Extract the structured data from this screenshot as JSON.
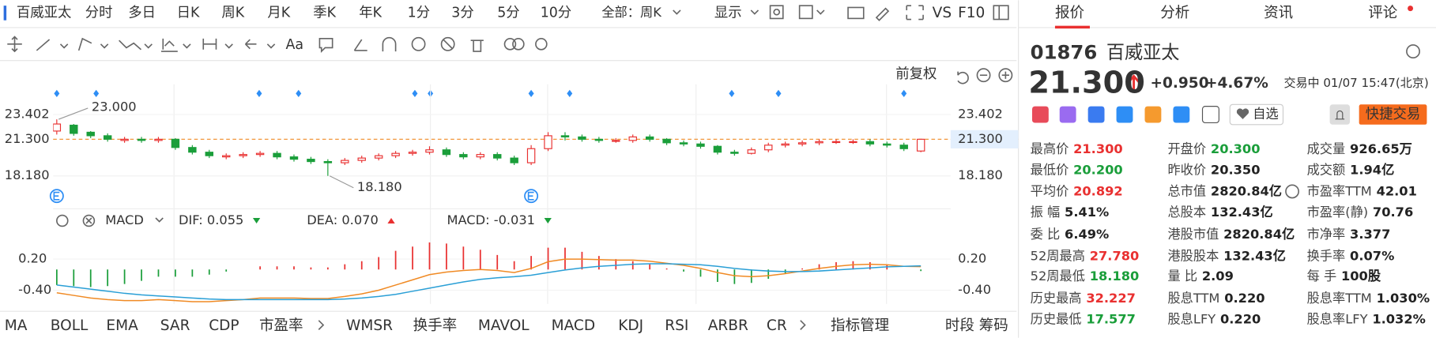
{
  "toolbar": {
    "tabs": [
      "百威亚太",
      "分时",
      "多日",
      "日K",
      "周K",
      "月K",
      "季K",
      "年K",
      "1分",
      "3分",
      "5分",
      "10分",
      "全部：周K",
      "显示"
    ],
    "active_tab": 3,
    "vs": "VS",
    "f10": "F10"
  },
  "drawing_tools": {
    "text_tool": "Aa"
  },
  "chart_header": {
    "adjust": "前复权"
  },
  "chart_data": [
    {
      "type": "candlestick",
      "open": [
        22.0,
        22.5,
        21.9,
        21.6,
        21.2,
        21.3,
        21.2,
        21.3,
        20.6,
        20.2,
        19.8,
        19.9,
        20.0,
        20.1,
        19.8,
        19.6,
        19.4,
        19.3,
        19.5,
        19.7,
        19.9,
        20.1,
        20.2,
        20.4,
        20.0,
        19.8,
        20.0,
        19.7,
        19.3,
        20.5,
        21.6,
        21.5,
        21.3,
        21.2,
        21.2,
        21.5,
        21.3,
        21.0,
        20.9,
        20.7,
        20.2,
        20.1,
        20.4,
        20.8,
        20.9,
        21.0,
        21.1,
        21.1,
        21.1,
        20.9,
        20.8,
        20.3
      ],
      "high": [
        23.0,
        22.6,
        22.0,
        21.8,
        21.5,
        21.5,
        21.5,
        21.4,
        20.8,
        20.4,
        20.1,
        20.2,
        20.3,
        20.3,
        20.0,
        19.8,
        19.6,
        19.7,
        19.9,
        20.1,
        20.3,
        20.4,
        20.7,
        20.6,
        20.2,
        20.2,
        20.2,
        19.9,
        20.8,
        21.9,
        21.9,
        21.7,
        21.5,
        21.4,
        21.7,
        21.7,
        21.4,
        21.2,
        21.1,
        20.8,
        20.4,
        20.6,
        21.0,
        21.1,
        21.2,
        21.3,
        21.3,
        21.3,
        21.3,
        21.1,
        21.0,
        21.3
      ],
      "low": [
        21.7,
        21.6,
        21.4,
        21.1,
        21.0,
        21.0,
        21.0,
        20.4,
        20.0,
        19.7,
        19.6,
        19.7,
        19.8,
        19.6,
        19.4,
        19.2,
        18.18,
        19.1,
        19.3,
        19.5,
        19.7,
        19.9,
        20.0,
        19.8,
        19.6,
        19.6,
        19.5,
        19.1,
        19.1,
        20.3,
        21.2,
        21.1,
        21.0,
        21.0,
        21.0,
        21.1,
        20.8,
        20.7,
        20.5,
        20.0,
        19.9,
        20.0,
        20.2,
        20.6,
        20.7,
        20.8,
        20.9,
        20.9,
        20.7,
        20.6,
        20.3,
        20.2
      ],
      "close": [
        22.6,
        21.8,
        21.6,
        21.3,
        21.3,
        21.2,
        21.3,
        20.6,
        20.2,
        19.9,
        19.9,
        20.0,
        20.1,
        19.8,
        19.6,
        19.4,
        19.3,
        19.5,
        19.7,
        19.9,
        20.1,
        20.2,
        20.4,
        20.0,
        19.8,
        20.0,
        19.7,
        19.3,
        20.5,
        21.6,
        21.5,
        21.3,
        21.2,
        21.2,
        21.5,
        21.3,
        21.0,
        20.9,
        20.7,
        20.2,
        20.1,
        20.4,
        20.8,
        20.9,
        21.0,
        21.1,
        21.1,
        21.1,
        20.9,
        20.8,
        20.5,
        21.3
      ],
      "up_color": "#e93030",
      "down_color": "#1a9e3a",
      "high_label": "23.000",
      "low_label": "18.180",
      "ylim": [
        16.78,
        24.73
      ],
      "yticks": [
        23.402,
        {
          "value": 21.3,
          "label": "21.300"
        },
        {
          "value": 18.18,
          "label": "18.180"
        }
      ]
    },
    {
      "type": "macd",
      "series": [
        {
          "name": "DIF",
          "color": "#f08a24",
          "legend": "DIF: 0.055",
          "values": [
            -0.45,
            -0.5,
            -0.55,
            -0.58,
            -0.6,
            -0.6,
            -0.58,
            -0.6,
            -0.62,
            -0.62,
            -0.6,
            -0.58,
            -0.55,
            -0.55,
            -0.55,
            -0.56,
            -0.56,
            -0.52,
            -0.47,
            -0.4,
            -0.3,
            -0.2,
            -0.1,
            -0.05,
            -0.02,
            0.0,
            -0.02,
            -0.06,
            0.02,
            0.15,
            0.2,
            0.2,
            0.19,
            0.18,
            0.18,
            0.16,
            0.12,
            0.08,
            0.02,
            -0.06,
            -0.12,
            -0.14,
            -0.12,
            -0.08,
            -0.03,
            0.02,
            0.06,
            0.09,
            0.1,
            0.09,
            0.06,
            0.055
          ]
        },
        {
          "name": "DEA",
          "color": "#2a9fd6",
          "legend": "DEA: 0.070",
          "values": [
            -0.3,
            -0.34,
            -0.38,
            -0.42,
            -0.46,
            -0.49,
            -0.51,
            -0.53,
            -0.55,
            -0.57,
            -0.58,
            -0.58,
            -0.58,
            -0.58,
            -0.58,
            -0.58,
            -0.58,
            -0.57,
            -0.55,
            -0.52,
            -0.48,
            -0.42,
            -0.36,
            -0.3,
            -0.24,
            -0.19,
            -0.16,
            -0.14,
            -0.11,
            -0.06,
            -0.01,
            0.03,
            0.06,
            0.08,
            0.1,
            0.11,
            0.11,
            0.1,
            0.09,
            0.06,
            0.02,
            -0.01,
            -0.03,
            -0.04,
            -0.04,
            -0.03,
            -0.01,
            0.01,
            0.03,
            0.05,
            0.06,
            0.07
          ]
        }
      ],
      "histogram": {
        "name": "MACD",
        "color": "#d84fd0",
        "legend": "MACD: -0.031",
        "up_color": "#e93030",
        "down_color": "#1a9e3a",
        "values": [
          -0.3,
          -0.32,
          -0.34,
          -0.32,
          -0.28,
          -0.22,
          -0.14,
          -0.14,
          -0.14,
          -0.1,
          -0.04,
          0.0,
          0.06,
          0.06,
          0.06,
          0.04,
          0.04,
          0.1,
          0.16,
          0.24,
          0.36,
          0.44,
          0.52,
          0.5,
          0.44,
          0.38,
          0.28,
          0.16,
          0.26,
          0.42,
          0.42,
          0.34,
          0.26,
          0.2,
          0.16,
          0.1,
          0.02,
          -0.04,
          -0.14,
          -0.24,
          -0.28,
          -0.26,
          -0.18,
          -0.08,
          0.02,
          0.1,
          0.14,
          0.16,
          0.14,
          0.08,
          0.0,
          -0.031
        ]
      },
      "ylim": [
        -0.63,
        0.64
      ],
      "yticks": [
        {
          "value": 0.2,
          "label": "0.20"
        },
        {
          "value": -0.4,
          "label": "-0.40"
        }
      ]
    }
  ],
  "indicator_panel": {
    "selected": "MACD"
  },
  "indicator_tabs": {
    "group1": [
      "MA",
      "BOLL",
      "EMA",
      "SAR",
      "CDP",
      "市盈率"
    ],
    "group2": [
      "WMSR",
      "换手率",
      "MAVOL",
      "MACD",
      "KDJ",
      "RSI",
      "ARBR",
      "CR"
    ],
    "active": 3,
    "manage": "指标管理",
    "right": [
      "时段",
      "筹码"
    ]
  },
  "quote": {
    "tabs": [
      "报价",
      "分析",
      "资讯",
      "评论"
    ],
    "code": "01876",
    "name": "百威亚太",
    "price": "21.300",
    "change": "+0.950",
    "change_pct": "+4.67%",
    "status": "交易中 01/07 15:47(北京)",
    "watch": "自选",
    "trade": "快捷交易",
    "stats": [
      [
        {
          "label": "最高价",
          "value": "21.300",
          "tone": "up"
        },
        {
          "label": "最低价",
          "value": "20.200",
          "tone": "down"
        },
        {
          "label": "平均价",
          "value": "20.892",
          "tone": "up"
        },
        {
          "label": "振 幅",
          "value": "5.41%"
        },
        {
          "label": "委 比",
          "value": "6.49%"
        },
        {
          "label": "52周最高",
          "value": "27.780",
          "tone": "up"
        },
        {
          "label": "52周最低",
          "value": "18.180",
          "tone": "down"
        },
        {
          "label": "历史最高",
          "value": "32.227",
          "tone": "up"
        },
        {
          "label": "历史最低",
          "value": "17.577",
          "tone": "down"
        }
      ],
      [
        {
          "label": "开盘价",
          "value": "20.300",
          "tone": "down"
        },
        {
          "label": "昨收价",
          "value": "20.350"
        },
        {
          "label": "总市值",
          "value": "2820.84亿"
        },
        {
          "label": "总股本",
          "value": "132.43亿"
        },
        {
          "label": "港股市值",
          "value": "2820.84亿"
        },
        {
          "label": "港股股本",
          "value": "132.43亿"
        },
        {
          "label": "量 比",
          "value": "2.09"
        },
        {
          "label": "股息TTM",
          "value": "0.220"
        },
        {
          "label": "股息LFY",
          "value": "0.220"
        }
      ],
      [
        {
          "label": "成交量",
          "value": "926.65万"
        },
        {
          "label": "成交额",
          "value": "1.94亿"
        },
        {
          "label": "市盈率TTM",
          "value": "42.01"
        },
        {
          "label": "市盈率(静)",
          "value": "70.76"
        },
        {
          "label": "市净率",
          "value": "3.377"
        },
        {
          "label": "换手率",
          "value": "0.07%"
        },
        {
          "label": "每 手",
          "value": "100股"
        },
        {
          "label": "股息率TTM",
          "value": "1.030%"
        },
        {
          "label": "股息率LFY",
          "value": "1.032%"
        }
      ]
    ]
  }
}
